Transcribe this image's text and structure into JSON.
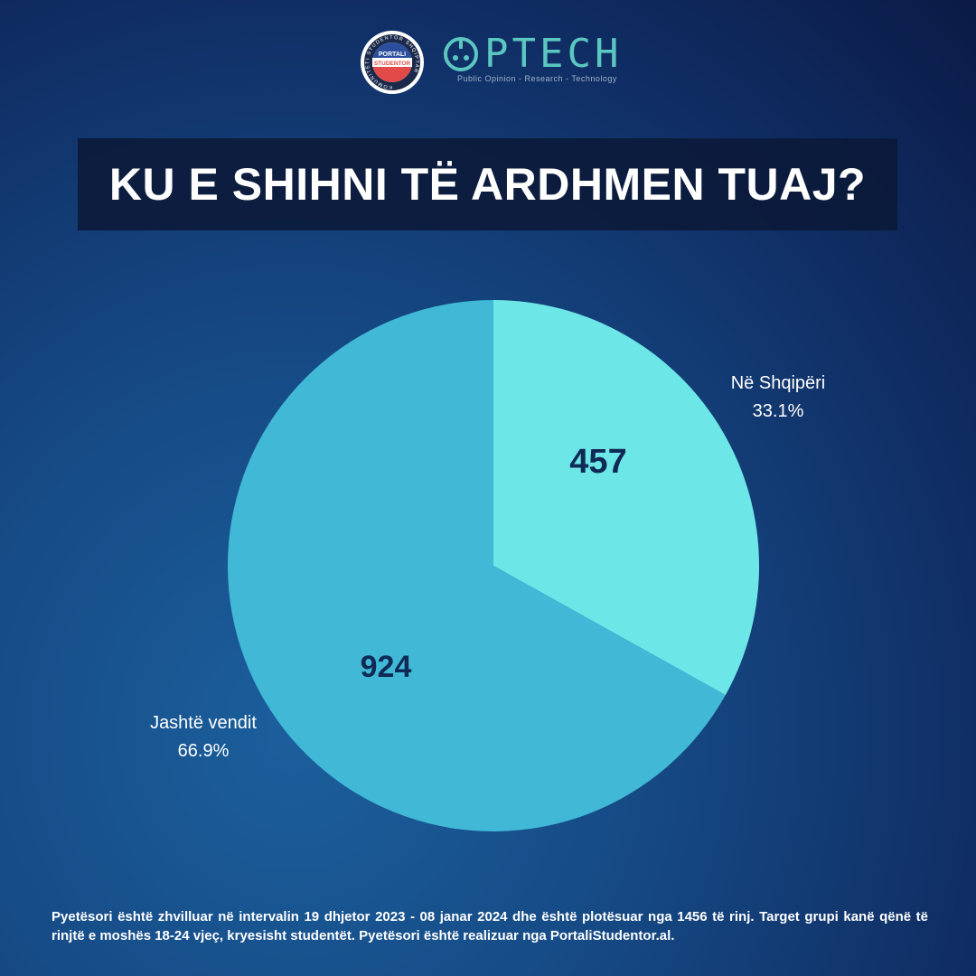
{
  "logos": {
    "badge_ring_text": "KOMUNITETI STUDENTOR SHQIPTAR",
    "badge_text_top": "PORTALI",
    "badge_text_bottom": "STUDENTOR",
    "brand_name": "PTECH",
    "brand_tagline": "Public Opinion - Research - Technology"
  },
  "title": "KU E SHIHNI TË ARDHMEN TUAJ?",
  "chart_data": {
    "type": "pie",
    "title": "KU E SHIHNI TË ARDHMEN TUAJ?",
    "slices": [
      {
        "label": "Në Shqipëri",
        "value": 457,
        "percent": "33.1%",
        "color": "#6de6e8"
      },
      {
        "label": "Jashtë vendit",
        "value": 924,
        "percent": "66.9%",
        "color": "#41b8d6"
      }
    ]
  },
  "footnote": "Pyetësori është zhvilluar në intervalin 19 dhjetor 2023 - 08 janar 2024 dhe është plotësuar nga 1456 të rinj. Target grupi kanë qënë të rinjtë e moshës 18-24 vjeç, kryesisht studentët. Pyetësori është realizuar nga PortaliStudentor.al."
}
